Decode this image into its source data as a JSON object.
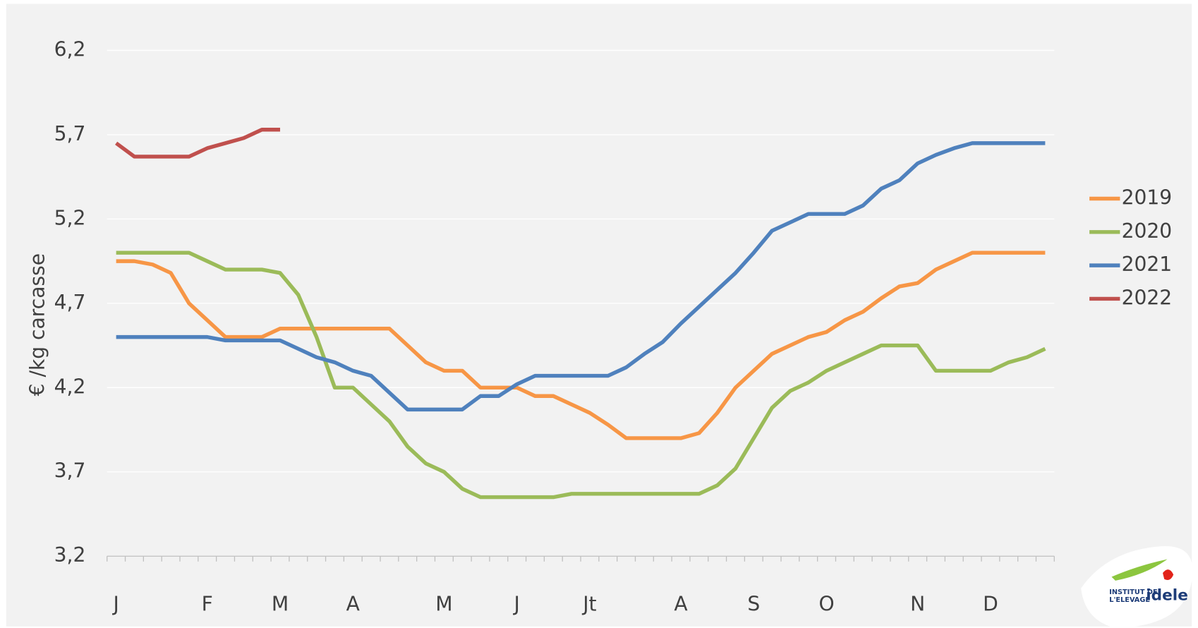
{
  "chart_data": {
    "type": "line",
    "y_label": "€ /kg carcasse",
    "categories": [
      "J",
      null,
      null,
      null,
      null,
      "F",
      null,
      null,
      null,
      "M",
      null,
      null,
      null,
      "A",
      null,
      null,
      null,
      null,
      "M",
      null,
      null,
      null,
      "J",
      null,
      null,
      null,
      "Jt",
      null,
      null,
      null,
      null,
      "A",
      null,
      null,
      null,
      "S",
      null,
      null,
      null,
      "O",
      null,
      null,
      null,
      null,
      "N",
      null,
      null,
      null,
      "D",
      null,
      null,
      null
    ],
    "series": [
      {
        "name": "2019",
        "color": "#f79646",
        "values": [
          4.95,
          4.95,
          4.93,
          4.88,
          4.7,
          4.6,
          4.5,
          4.5,
          4.5,
          4.55,
          4.55,
          4.55,
          4.55,
          4.55,
          4.55,
          4.55,
          4.45,
          4.35,
          4.3,
          4.3,
          4.2,
          4.2,
          4.2,
          4.15,
          4.15,
          4.1,
          4.05,
          3.98,
          3.9,
          3.9,
          3.9,
          3.9,
          3.93,
          4.05,
          4.2,
          4.3,
          4.4,
          4.45,
          4.5,
          4.53,
          4.6,
          4.65,
          4.73,
          4.8,
          4.82,
          4.9,
          4.95,
          5.0,
          5.0,
          5.0,
          5.0,
          5.0
        ]
      },
      {
        "name": "2020",
        "color": "#9bbb59",
        "values": [
          5.0,
          5.0,
          5.0,
          5.0,
          5.0,
          4.95,
          4.9,
          4.9,
          4.9,
          4.88,
          4.75,
          4.5,
          4.2,
          4.2,
          4.1,
          4.0,
          3.85,
          3.75,
          3.7,
          3.6,
          3.55,
          3.55,
          3.55,
          3.55,
          3.55,
          3.57,
          3.57,
          3.57,
          3.57,
          3.57,
          3.57,
          3.57,
          3.57,
          3.62,
          3.72,
          3.9,
          4.08,
          4.18,
          4.23,
          4.3,
          4.35,
          4.4,
          4.45,
          4.45,
          4.45,
          4.3,
          4.3,
          4.3,
          4.3,
          4.35,
          4.38,
          4.43
        ]
      },
      {
        "name": "2021",
        "color": "#4f81bd",
        "values": [
          4.5,
          4.5,
          4.5,
          4.5,
          4.5,
          4.5,
          4.48,
          4.48,
          4.48,
          4.48,
          4.43,
          4.38,
          4.35,
          4.3,
          4.27,
          4.17,
          4.07,
          4.07,
          4.07,
          4.07,
          4.15,
          4.15,
          4.22,
          4.27,
          4.27,
          4.27,
          4.27,
          4.27,
          4.32,
          4.4,
          4.47,
          4.58,
          4.68,
          4.78,
          4.88,
          5.0,
          5.13,
          5.18,
          5.23,
          5.23,
          5.23,
          5.28,
          5.38,
          5.43,
          5.53,
          5.58,
          5.62,
          5.65,
          5.65,
          5.65,
          5.65,
          5.65
        ]
      },
      {
        "name": "2022",
        "color": "#c0504d",
        "values": [
          5.65,
          5.57,
          5.57,
          5.57,
          5.57,
          5.62,
          5.65,
          5.68,
          5.73,
          5.73,
          null,
          null,
          null,
          null,
          null,
          null,
          null,
          null,
          null,
          null,
          null,
          null,
          null,
          null,
          null,
          null,
          null,
          null,
          null,
          null,
          null,
          null,
          null,
          null,
          null,
          null,
          null,
          null,
          null,
          null,
          null,
          null,
          null,
          null,
          null,
          null,
          null,
          null,
          null,
          null,
          null,
          null
        ]
      }
    ],
    "ylim": [
      3.2,
      6.2
    ],
    "yticks": [
      {
        "value": 3.2,
        "label": "3,2"
      },
      {
        "value": 3.7,
        "label": "3,7"
      },
      {
        "value": 4.2,
        "label": "4,2"
      },
      {
        "value": 4.7,
        "label": "4,7"
      },
      {
        "value": 5.2,
        "label": "5,2"
      },
      {
        "value": 5.7,
        "label": "5,7"
      },
      {
        "value": 6.2,
        "label": "6,2"
      }
    ],
    "grid": true,
    "legend": "right"
  },
  "logo": {
    "line1": "INSTITUT DE",
    "line2": "L'ELEVAGE",
    "brand": "idele"
  }
}
